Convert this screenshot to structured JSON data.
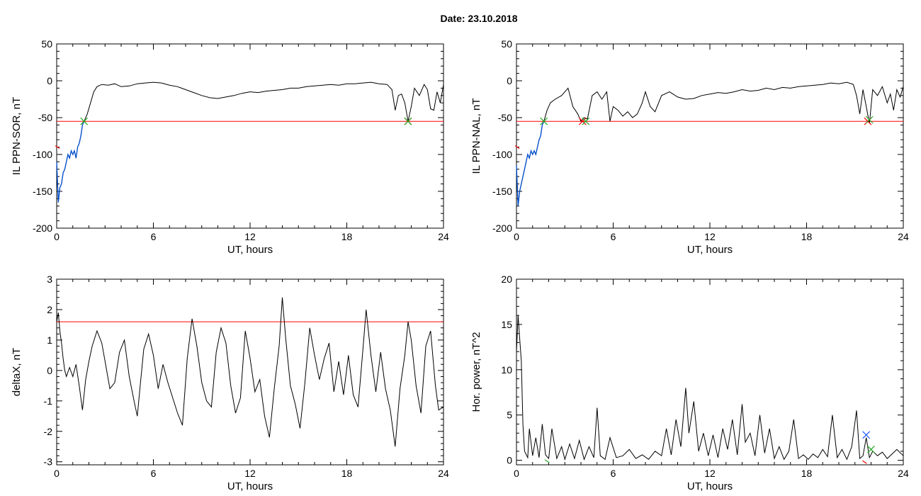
{
  "title": "Date:  23.10.2018",
  "colors": {
    "data": "#000000",
    "threshold": "#ff0000",
    "highlight": "#0050d0",
    "green_marker": "#22aa22",
    "blue_marker": "#2255ff"
  },
  "chart_data": [
    {
      "type": "line",
      "id": "p1",
      "xlabel": "UT, hours",
      "ylabel": "IL PPN-SOR, nT",
      "xlim": [
        0,
        24
      ],
      "ylim": [
        -200,
        50
      ],
      "xticks": [
        0,
        6,
        12,
        18,
        24
      ],
      "yticks": [
        -200,
        -150,
        -100,
        -50,
        0,
        50
      ],
      "threshold": -55,
      "highlight_range": [
        0,
        1.7
      ],
      "x": [
        0,
        0.1,
        0.2,
        0.3,
        0.4,
        0.5,
        0.6,
        0.7,
        0.8,
        0.9,
        1.0,
        1.1,
        1.2,
        1.3,
        1.4,
        1.5,
        1.6,
        1.7,
        1.9,
        2.1,
        2.3,
        2.5,
        2.8,
        3.2,
        3.6,
        4.0,
        4.5,
        5.0,
        5.5,
        6.0,
        6.5,
        7.0,
        7.5,
        8.0,
        8.5,
        9.0,
        9.5,
        10.0,
        10.5,
        11.0,
        11.5,
        12.0,
        12.5,
        13.0,
        13.5,
        14.0,
        14.5,
        15.0,
        15.5,
        16.0,
        16.5,
        17.0,
        17.5,
        18.0,
        18.5,
        19.0,
        19.5,
        20.0,
        20.5,
        20.8,
        21.0,
        21.2,
        21.4,
        21.6,
        21.8,
        22.0,
        22.2,
        22.5,
        22.8,
        23.0,
        23.2,
        23.4,
        23.6,
        23.8,
        24.0
      ],
      "y": [
        -110,
        -165,
        -145,
        -140,
        -125,
        -120,
        -110,
        -100,
        -105,
        -95,
        -100,
        -95,
        -105,
        -90,
        -85,
        -75,
        -60,
        -55,
        -45,
        -30,
        -15,
        -8,
        -5,
        -6,
        -4,
        -8,
        -7,
        -4,
        -3,
        -2,
        -3,
        -6,
        -8,
        -12,
        -16,
        -20,
        -23,
        -24,
        -22,
        -20,
        -17,
        -15,
        -16,
        -14,
        -13,
        -12,
        -10,
        -10,
        -8,
        -7,
        -6,
        -5,
        -6,
        -4,
        -4,
        -3,
        -2,
        -4,
        -5,
        -12,
        -40,
        -20,
        -18,
        -30,
        -55,
        -35,
        -10,
        -20,
        -5,
        -12,
        -38,
        -40,
        -15,
        -30,
        -5
      ],
      "markers": [
        {
          "x": 1.7,
          "y": -55,
          "color": "#22aa22",
          "symbol": "x"
        },
        {
          "x": 21.8,
          "y": -55,
          "color": "#ff0000",
          "symbol": "x"
        },
        {
          "x": 21.8,
          "y": -55,
          "color": "#22aa22",
          "symbol": "x"
        },
        {
          "x": 0.05,
          "y": -90,
          "color": "#ff0000",
          "symbol": "tick"
        }
      ]
    },
    {
      "type": "line",
      "id": "p2",
      "xlabel": "UT, hours",
      "ylabel": "IL PPN-NAL, nT",
      "xlim": [
        0,
        24
      ],
      "ylim": [
        -200,
        50
      ],
      "xticks": [
        0,
        6,
        12,
        18,
        24
      ],
      "yticks": [
        -200,
        -150,
        -100,
        -50,
        0,
        50
      ],
      "threshold": -55,
      "highlight_range": [
        0,
        1.7
      ],
      "x": [
        0,
        0.1,
        0.2,
        0.3,
        0.4,
        0.5,
        0.6,
        0.7,
        0.8,
        0.9,
        1.0,
        1.1,
        1.2,
        1.3,
        1.4,
        1.5,
        1.6,
        1.7,
        1.9,
        2.1,
        2.4,
        2.8,
        3.2,
        3.5,
        3.8,
        4.0,
        4.2,
        4.4,
        4.7,
        5.0,
        5.3,
        5.6,
        5.8,
        6.0,
        6.3,
        6.6,
        6.9,
        7.2,
        7.5,
        7.8,
        8.0,
        8.3,
        8.6,
        9.0,
        9.5,
        10.0,
        10.5,
        11.0,
        11.5,
        12.0,
        12.5,
        13.0,
        13.5,
        14.0,
        14.5,
        15.0,
        15.5,
        16.0,
        16.5,
        17.0,
        17.5,
        18.0,
        18.5,
        19.0,
        19.5,
        20.0,
        20.5,
        20.9,
        21.1,
        21.3,
        21.5,
        21.7,
        21.9,
        22.1,
        22.4,
        22.7,
        23.0,
        23.2,
        23.4,
        23.6,
        23.8,
        24.0
      ],
      "y": [
        -115,
        -170,
        -150,
        -140,
        -130,
        -120,
        -110,
        -100,
        -105,
        -95,
        -100,
        -95,
        -100,
        -90,
        -80,
        -75,
        -60,
        -55,
        -40,
        -30,
        -25,
        -20,
        -10,
        -35,
        -45,
        -55,
        -50,
        -52,
        -20,
        -15,
        -25,
        -15,
        -55,
        -35,
        -40,
        -48,
        -42,
        -50,
        -45,
        -30,
        -15,
        -35,
        -42,
        -20,
        -15,
        -22,
        -25,
        -24,
        -20,
        -18,
        -16,
        -17,
        -15,
        -12,
        -14,
        -13,
        -10,
        -12,
        -9,
        -10,
        -8,
        -7,
        -6,
        -5,
        -3,
        -4,
        -2,
        -5,
        -20,
        -45,
        -12,
        -35,
        -58,
        -12,
        -20,
        -8,
        -30,
        -18,
        -40,
        -12,
        -22,
        -8
      ],
      "markers": [
        {
          "x": 1.7,
          "y": -55,
          "color": "#22aa22",
          "symbol": "x"
        },
        {
          "x": 4.1,
          "y": -55,
          "color": "#ff0000",
          "symbol": "x"
        },
        {
          "x": 4.3,
          "y": -55,
          "color": "#22aa22",
          "symbol": "x"
        },
        {
          "x": 21.8,
          "y": -55,
          "color": "#ff0000",
          "symbol": "x"
        },
        {
          "x": 21.9,
          "y": -53,
          "color": "#22aa22",
          "symbol": "x"
        },
        {
          "x": 0.05,
          "y": -90,
          "color": "#ff0000",
          "symbol": "tick"
        }
      ]
    },
    {
      "type": "line",
      "id": "p3",
      "xlabel": "UT, hours",
      "ylabel": "deltaX, nT",
      "xlim": [
        0,
        24
      ],
      "ylim": [
        -3.1,
        3
      ],
      "xticks": [
        0,
        6,
        12,
        18,
        24
      ],
      "yticks": [
        -3,
        -2,
        -1,
        0,
        1,
        2,
        3
      ],
      "threshold": 1.6,
      "x": [
        0,
        0.1,
        0.2,
        0.3,
        0.4,
        0.5,
        0.6,
        0.8,
        1.0,
        1.2,
        1.4,
        1.6,
        1.8,
        2.0,
        2.2,
        2.5,
        2.8,
        3.0,
        3.3,
        3.6,
        3.9,
        4.2,
        4.5,
        4.8,
        5.0,
        5.2,
        5.4,
        5.7,
        6.0,
        6.3,
        6.6,
        6.9,
        7.2,
        7.5,
        7.8,
        8.1,
        8.4,
        8.7,
        9.0,
        9.3,
        9.6,
        9.9,
        10.2,
        10.5,
        10.8,
        11.1,
        11.4,
        11.7,
        12.0,
        12.3,
        12.6,
        12.9,
        13.2,
        13.5,
        13.8,
        14.0,
        14.2,
        14.5,
        14.8,
        15.1,
        15.4,
        15.7,
        16.0,
        16.3,
        16.6,
        16.9,
        17.2,
        17.5,
        17.8,
        18.1,
        18.4,
        18.7,
        19.0,
        19.2,
        19.5,
        19.8,
        20.1,
        20.4,
        20.7,
        21.0,
        21.3,
        21.6,
        21.8,
        22.0,
        22.3,
        22.6,
        22.9,
        23.2,
        23.5,
        23.7,
        24.0
      ],
      "y": [
        1.6,
        1.9,
        1.3,
        0.9,
        0.4,
        0.0,
        -0.2,
        0.1,
        -0.2,
        0.2,
        -0.5,
        -1.3,
        -0.3,
        0.3,
        0.8,
        1.3,
        0.9,
        0.3,
        -0.6,
        -0.4,
        0.6,
        1.0,
        -0.2,
        -1.0,
        -1.5,
        -0.4,
        0.7,
        1.2,
        0.5,
        -0.6,
        0.2,
        -0.4,
        -0.9,
        -1.4,
        -1.8,
        0.4,
        1.7,
        0.8,
        -0.4,
        -1.0,
        -1.2,
        0.6,
        1.4,
        0.9,
        -0.5,
        -1.4,
        -0.9,
        1.3,
        0.4,
        -0.7,
        -0.3,
        -1.5,
        -2.2,
        -0.6,
        0.8,
        2.4,
        1.1,
        -0.5,
        -1.1,
        -1.9,
        -0.4,
        1.4,
        0.5,
        -0.3,
        0.4,
        0.9,
        -0.7,
        0.3,
        -0.8,
        0.5,
        -0.8,
        -1.2,
        0.7,
        2.0,
        0.5,
        -0.7,
        0.6,
        -0.6,
        -1.3,
        -2.5,
        -0.6,
        0.5,
        1.6,
        1.0,
        -0.5,
        -1.4,
        0.8,
        1.3,
        -0.5,
        -1.3,
        -1.2
      ]
    },
    {
      "type": "line",
      "id": "p4",
      "xlabel": "UT, hours",
      "ylabel": "Hor. power, nT^2",
      "xlim": [
        0,
        24
      ],
      "ylim": [
        -0.5,
        20
      ],
      "xticks": [
        0,
        6,
        12,
        18,
        24
      ],
      "yticks": [
        0,
        5,
        10,
        15,
        20
      ],
      "x": [
        0,
        0.1,
        0.2,
        0.3,
        0.4,
        0.5,
        0.7,
        0.8,
        1.0,
        1.2,
        1.4,
        1.6,
        1.8,
        2.0,
        2.2,
        2.5,
        2.8,
        3.0,
        3.3,
        3.6,
        3.9,
        4.2,
        4.5,
        4.8,
        5.0,
        5.2,
        5.5,
        5.8,
        6.2,
        6.6,
        7.0,
        7.4,
        7.8,
        8.2,
        8.6,
        9.0,
        9.3,
        9.6,
        9.9,
        10.2,
        10.5,
        10.7,
        11.0,
        11.3,
        11.6,
        11.9,
        12.2,
        12.5,
        12.8,
        13.1,
        13.4,
        13.7,
        14.0,
        14.2,
        14.5,
        14.8,
        15.1,
        15.4,
        15.7,
        16.0,
        16.3,
        16.6,
        16.9,
        17.2,
        17.5,
        17.8,
        18.1,
        18.4,
        18.7,
        19.0,
        19.3,
        19.6,
        19.9,
        20.2,
        20.5,
        20.8,
        21.1,
        21.3,
        21.5,
        21.7,
        21.9,
        22.1,
        22.4,
        22.7,
        23.0,
        23.3,
        23.6,
        24.0
      ],
      "y": [
        12.0,
        16.0,
        13.5,
        11.0,
        4.0,
        1.0,
        0.3,
        3.5,
        0.5,
        2.5,
        0.3,
        4.0,
        0.6,
        0.2,
        3.5,
        0.2,
        1.5,
        0.1,
        1.8,
        0.2,
        2.2,
        0.1,
        1.5,
        0.3,
        5.8,
        0.5,
        0.1,
        2.5,
        0.3,
        0.5,
        1.2,
        0.2,
        0.6,
        0.1,
        1.0,
        0.5,
        3.5,
        0.6,
        4.5,
        1.5,
        8.0,
        3.0,
        6.5,
        1.0,
        3.0,
        0.5,
        2.8,
        0.3,
        3.5,
        1.2,
        4.5,
        0.6,
        6.2,
        2.0,
        3.0,
        0.5,
        5.0,
        0.8,
        3.5,
        0.2,
        1.5,
        0.1,
        1.0,
        4.5,
        0.2,
        0.6,
        0.1,
        0.7,
        0.3,
        1.2,
        0.4,
        5.0,
        0.3,
        1.2,
        0.1,
        1.5,
        5.5,
        0.2,
        0.5,
        2.5,
        0.3,
        1.0,
        0.5,
        0.9,
        0.2,
        0.7,
        1.2,
        0.5
      ],
      "markers": [
        {
          "x": 21.7,
          "y": 2.8,
          "color": "#2255ff",
          "symbol": "x"
        },
        {
          "x": 22.0,
          "y": 1.2,
          "color": "#22aa22",
          "symbol": "x"
        },
        {
          "x": 1.9,
          "y": -0.1,
          "color": "#22aa22",
          "symbol": "tick"
        },
        {
          "x": 21.6,
          "y": -0.2,
          "color": "#ff0000",
          "symbol": "tick"
        }
      ]
    }
  ]
}
